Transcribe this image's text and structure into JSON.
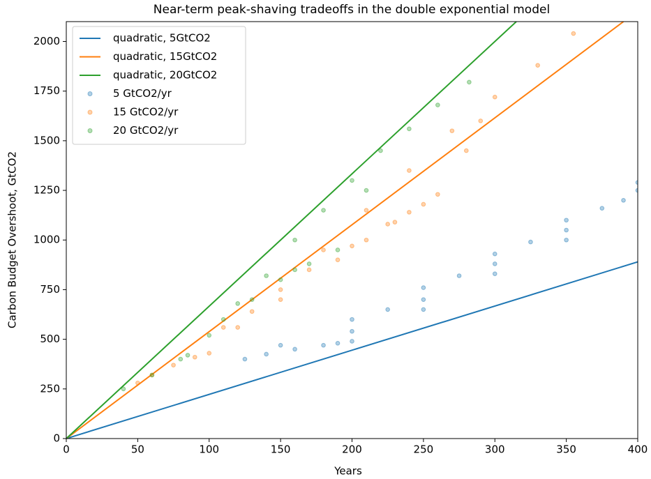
{
  "chart_data": {
    "type": "line",
    "title": "Near-term peak-shaving tradeoffs in the double exponential model",
    "x_label": "Years",
    "y_label": "Carbon Budget Overshoot, GtCO2",
    "xlim": [
      0,
      400
    ],
    "ylim": [
      0,
      2100
    ],
    "xticks": [
      0,
      50,
      100,
      150,
      200,
      250,
      300,
      350,
      400
    ],
    "yticks": [
      0,
      250,
      500,
      750,
      1000,
      1250,
      1500,
      1750,
      2000
    ],
    "legend": "upper left",
    "series": [
      {
        "name": "quadratic, 5GtCO2",
        "kind": "line",
        "color": "#1f77b4",
        "x": [
          0,
          400
        ],
        "values": [
          0,
          890
        ]
      },
      {
        "name": "quadratic, 15GtCO2",
        "kind": "line",
        "color": "#ff7f0e",
        "x": [
          0,
          390
        ],
        "values": [
          0,
          2100
        ]
      },
      {
        "name": "quadratic, 20GtCO2",
        "kind": "line",
        "color": "#2ca02c",
        "x": [
          0,
          315
        ],
        "values": [
          0,
          2100
        ]
      },
      {
        "name": "5 GtCO2/yr",
        "kind": "scatter",
        "color": "#1f77b4",
        "x": [
          125,
          140,
          160,
          180,
          200,
          150,
          200,
          250,
          300,
          350,
          400,
          190,
          250,
          300,
          350,
          390,
          200,
          250,
          300,
          350,
          400,
          225,
          275,
          325,
          375
        ],
        "values": [
          400,
          425,
          450,
          470,
          490,
          470,
          600,
          760,
          930,
          1100,
          1290,
          480,
          650,
          830,
          1000,
          1200,
          540,
          700,
          880,
          1050,
          1250,
          650,
          820,
          990,
          1160
        ]
      },
      {
        "name": "15 GtCO2/yr",
        "kind": "scatter",
        "color": "#ff7f0e",
        "x": [
          50,
          60,
          75,
          90,
          100,
          120,
          150,
          180,
          210,
          240,
          270,
          300,
          330,
          355,
          210,
          225,
          240,
          250,
          260,
          230,
          200,
          150,
          130,
          110,
          170,
          190,
          280,
          290
        ],
        "values": [
          280,
          320,
          370,
          410,
          430,
          560,
          750,
          950,
          1150,
          1350,
          1550,
          1720,
          1880,
          2040,
          1000,
          1080,
          1140,
          1180,
          1230,
          1090,
          970,
          700,
          640,
          560,
          850,
          900,
          1450,
          1600
        ]
      },
      {
        "name": "20 GtCO2/yr",
        "kind": "scatter",
        "color": "#2ca02c",
        "x": [
          40,
          60,
          80,
          100,
          120,
          140,
          160,
          180,
          200,
          220,
          240,
          260,
          282,
          150,
          170,
          190,
          130,
          110,
          160,
          85,
          210
        ],
        "values": [
          250,
          320,
          400,
          520,
          680,
          820,
          1000,
          1150,
          1300,
          1450,
          1560,
          1680,
          1795,
          800,
          880,
          950,
          700,
          600,
          850,
          420,
          1250
        ]
      }
    ]
  }
}
